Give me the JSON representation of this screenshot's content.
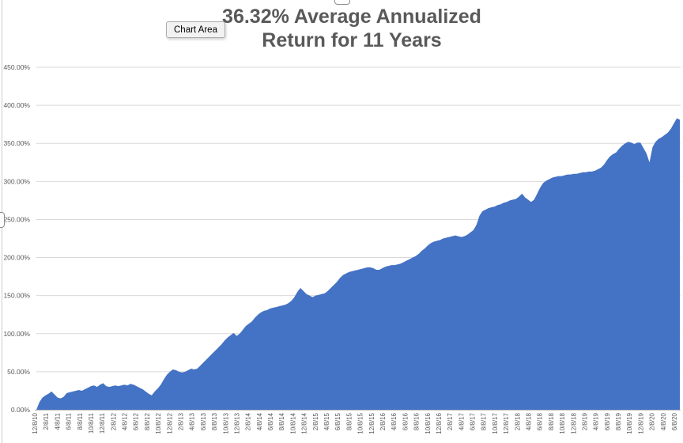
{
  "tooltip": {
    "label": "Chart Area"
  },
  "title": {
    "line1": "36.32% Average Annualized",
    "line2": "Return for 11 Years"
  },
  "colors": {
    "area_fill": "#4472C4",
    "gridline": "#D9D9D9",
    "axis_line": "#BFBFBF",
    "axis_text": "#595959",
    "title_text": "#595959",
    "tooltip_bg": "#F2F2F2",
    "tooltip_border": "#ABABAB"
  },
  "chart_data": {
    "type": "area",
    "title": "36.32% Average Annualized Return for 11 Years",
    "fill_color": "#4472C4",
    "grid": true,
    "legend": false,
    "ylim": [
      0,
      450
    ],
    "y_unit": "%",
    "x_tick_rotation_deg": 90,
    "y_tick_labels": [
      "0.00%",
      "50.00%",
      "100.00%",
      "150.00%",
      "200.00%",
      "250.00%",
      "300.00%",
      "350.00%",
      "400.00%",
      "450.00%"
    ],
    "x_tick_labels": [
      "12/8/10",
      "2/8/11",
      "4/8/11",
      "6/8/11",
      "8/8/11",
      "10/8/11",
      "12/8/11",
      "2/8/12",
      "4/8/12",
      "6/8/12",
      "8/8/12",
      "10/8/12",
      "12/8/12",
      "2/8/13",
      "4/8/13",
      "6/8/13",
      "8/8/13",
      "10/8/13",
      "12/8/13",
      "2/8/14",
      "4/8/14",
      "6/8/14",
      "8/8/14",
      "10/8/14",
      "12/8/14",
      "2/8/15",
      "4/8/15",
      "6/8/15",
      "8/8/15",
      "10/8/15",
      "12/8/15",
      "2/8/16",
      "4/8/16",
      "6/8/16",
      "8/8/16",
      "10/8/16",
      "12/8/16",
      "2/8/17",
      "4/8/17",
      "6/8/17",
      "8/8/17",
      "10/8/17",
      "12/8/17",
      "2/8/18",
      "4/8/18",
      "6/8/18",
      "8/8/18",
      "10/8/18",
      "12/8/18",
      "2/8/19",
      "4/8/19",
      "6/8/19",
      "8/8/19",
      "10/8/19",
      "12/8/19",
      "2/8/20",
      "4/8/20",
      "6/8/20"
    ],
    "values_percent": [
      0,
      10,
      16,
      19,
      21,
      24,
      20,
      16,
      15,
      17,
      22,
      23,
      24,
      25,
      26,
      25,
      27,
      29,
      31,
      32,
      30,
      33,
      35,
      31,
      30,
      31,
      32,
      31,
      32,
      33,
      32,
      34,
      33,
      31,
      29,
      27,
      24,
      21,
      19,
      24,
      28,
      33,
      40,
      46,
      50,
      53,
      52,
      50,
      49,
      50,
      52,
      54,
      53,
      54,
      58,
      62,
      66,
      70,
      74,
      78,
      82,
      86,
      91,
      95,
      98,
      101,
      97,
      100,
      105,
      110,
      113,
      116,
      121,
      125,
      128,
      130,
      131,
      133,
      134,
      135,
      136,
      137,
      138,
      140,
      143,
      148,
      155,
      160,
      156,
      152,
      150,
      148,
      150,
      151,
      152,
      153,
      156,
      160,
      164,
      168,
      173,
      177,
      179,
      181,
      182,
      183,
      184,
      185,
      186,
      187,
      187,
      186,
      184,
      184,
      186,
      188,
      189,
      190,
      190,
      191,
      192,
      194,
      196,
      198,
      200,
      202,
      205,
      209,
      212,
      216,
      219,
      221,
      222,
      223,
      225,
      226,
      227,
      228,
      229,
      228,
      227,
      228,
      230,
      233,
      236,
      243,
      255,
      261,
      263,
      265,
      266,
      267,
      269,
      270,
      272,
      273,
      275,
      276,
      277,
      280,
      284,
      279,
      276,
      273,
      276,
      284,
      292,
      298,
      301,
      303,
      305,
      306,
      307,
      307,
      308,
      309,
      309,
      310,
      310,
      311,
      312,
      312,
      313,
      313,
      314,
      316,
      318,
      322,
      328,
      333,
      336,
      338,
      343,
      347,
      350,
      352,
      351,
      349,
      351,
      351,
      344,
      337,
      325,
      345,
      352,
      356,
      358,
      361,
      364,
      369,
      376,
      383,
      381
    ]
  }
}
